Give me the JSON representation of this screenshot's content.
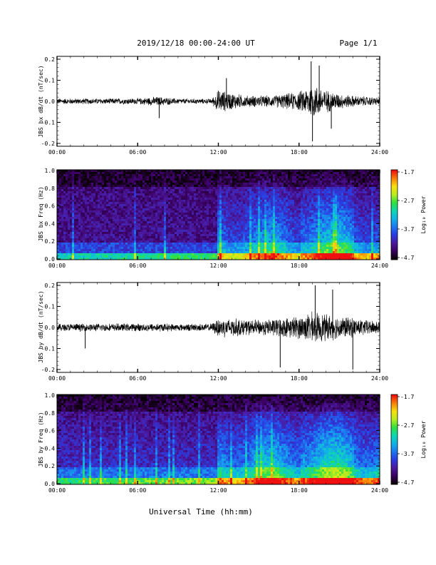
{
  "header": {
    "title": "2019/12/18  00:00-24:00 UT",
    "page": "Page 1/1"
  },
  "colors": {
    "trace": "#000000",
    "colormap": [
      "#0a0008",
      "#3a0060",
      "#4a1aa0",
      "#2a3ce0",
      "#1e78f0",
      "#10b4e6",
      "#10d6b0",
      "#30e040",
      "#b8ec20",
      "#f8e010",
      "#f88008",
      "#f01010"
    ]
  },
  "chart_data": [
    {
      "type": "line",
      "name": "waveform-bx",
      "ylabel": "JBS bx dB/dt (nT/sec)",
      "ylim": [
        -0.2,
        0.2
      ],
      "yticks": [
        "0.2",
        "0.1",
        "0.0",
        "-0.1",
        "-0.2"
      ],
      "xlim": [
        "00:00",
        "24:00"
      ],
      "xticks": [
        "00:00",
        "06:00",
        "12:00",
        "18:00",
        "24:00"
      ],
      "envelope": {
        "hours": [
          0,
          2,
          4,
          6,
          7.5,
          9,
          11.5,
          12,
          13,
          14,
          15,
          16,
          17,
          18,
          19,
          20,
          21,
          22,
          23,
          24
        ],
        "amplitude": [
          0.015,
          0.015,
          0.015,
          0.016,
          0.025,
          0.014,
          0.013,
          0.06,
          0.045,
          0.03,
          0.03,
          0.03,
          0.04,
          0.05,
          0.09,
          0.06,
          0.04,
          0.03,
          0.025,
          0.02
        ]
      },
      "spikes": [
        {
          "hour": 7.6,
          "value": -0.08
        },
        {
          "hour": 12.6,
          "value": 0.11
        },
        {
          "hour": 18.9,
          "value": 0.19
        },
        {
          "hour": 19.0,
          "value": -0.19
        },
        {
          "hour": 19.5,
          "value": 0.17
        },
        {
          "hour": 20.4,
          "value": -0.13
        }
      ]
    },
    {
      "type": "heatmap",
      "name": "spectrogram-bx",
      "ylabel": "JBS bx Freq (Hz)",
      "ylim": [
        0.0,
        1.0
      ],
      "yticks": [
        "1.0",
        "0.8",
        "0.6",
        "0.4",
        "0.2",
        "0.0"
      ],
      "xlim": [
        "00:00",
        "24:00"
      ],
      "xticks": [
        "00:00",
        "06:00",
        "12:00",
        "18:00",
        "24:00"
      ],
      "colorbar": {
        "label": "Log₁₀ Power",
        "ticks": [
          "-1.7",
          "-2.7",
          "-3.7",
          "-4.7"
        ],
        "range": [
          -4.7,
          -1.7
        ]
      }
    },
    {
      "type": "line",
      "name": "waveform-by",
      "ylabel": "JBS by dB/dt (nT/sec)",
      "ylim": [
        -0.2,
        0.2
      ],
      "yticks": [
        "0.2",
        "0.1",
        "0.0",
        "-0.1",
        "-0.2"
      ],
      "xlim": [
        "00:00",
        "24:00"
      ],
      "xticks": [
        "00:00",
        "06:00",
        "12:00",
        "18:00",
        "24:00"
      ],
      "envelope": {
        "hours": [
          0,
          2,
          4,
          6,
          7.5,
          9,
          11.5,
          12,
          13,
          14,
          15,
          16,
          17,
          18,
          19,
          20,
          21,
          22,
          23,
          24
        ],
        "amplitude": [
          0.02,
          0.02,
          0.02,
          0.02,
          0.022,
          0.018,
          0.02,
          0.05,
          0.05,
          0.04,
          0.04,
          0.045,
          0.05,
          0.06,
          0.08,
          0.07,
          0.06,
          0.05,
          0.04,
          0.035
        ]
      },
      "spikes": [
        {
          "hour": 2.1,
          "value": -0.1
        },
        {
          "hour": 16.6,
          "value": -0.19
        },
        {
          "hour": 19.2,
          "value": 0.2
        },
        {
          "hour": 20.5,
          "value": 0.18
        },
        {
          "hour": 22.0,
          "value": -0.2
        }
      ]
    },
    {
      "type": "heatmap",
      "name": "spectrogram-by",
      "ylabel": "JBS by Freq (Hz)",
      "ylim": [
        0.0,
        1.0
      ],
      "yticks": [
        "1.0",
        "0.8",
        "0.6",
        "0.4",
        "0.2",
        "0.0"
      ],
      "xlim": [
        "00:00",
        "24:00"
      ],
      "xticks": [
        "00:00",
        "06:00",
        "12:00",
        "18:00",
        "24:00"
      ],
      "colorbar": {
        "label": "Log₁₀ Power",
        "ticks": [
          "-1.7",
          "-2.7",
          "-3.7",
          "-4.7"
        ],
        "range": [
          -4.7,
          -1.7
        ]
      }
    }
  ],
  "xaxis_label": "Universal Time (hh:mm)"
}
